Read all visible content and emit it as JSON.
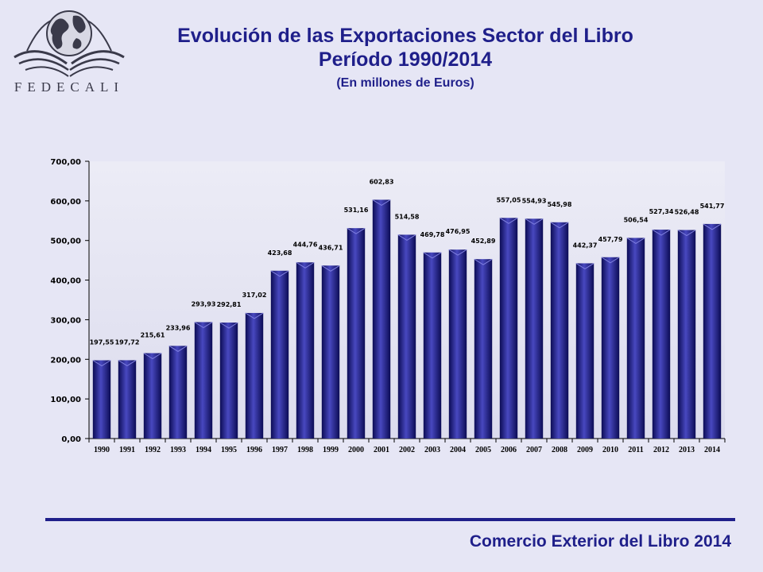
{
  "header": {
    "logo_text": "FEDECALI",
    "title_line1": "Evolución de las Exportaciones Sector del Libro",
    "title_line2": "Período 1990/2014",
    "subtitle": "(En millones de Euros)"
  },
  "colors": {
    "bar": "#1f1f8a",
    "bar_light": "#5a5ad0",
    "title": "#1f1f8a",
    "background": "#e6e6f5"
  },
  "icons": {
    "logo": "globe-book-logo-icon"
  },
  "footer": {
    "text": "Comercio Exterior del Libro 2014"
  },
  "chart_data": {
    "type": "bar",
    "categories": [
      "1990",
      "1991",
      "1992",
      "1993",
      "1994",
      "1995",
      "1996",
      "1997",
      "1998",
      "1999",
      "2000",
      "2001",
      "2002",
      "2003",
      "2004",
      "2005",
      "2006",
      "2007",
      "2008",
      "2009",
      "2010",
      "2011",
      "2012",
      "2013",
      "2014"
    ],
    "values": [
      197.55,
      197.72,
      215.61,
      233.96,
      293.93,
      292.81,
      317.02,
      423.68,
      444.76,
      436.71,
      531.16,
      602.83,
      514.58,
      469.78,
      476.95,
      452.89,
      557.05,
      554.93,
      545.98,
      442.37,
      457.79,
      506.54,
      527.34,
      526.48,
      541.77
    ],
    "value_labels": [
      "197,55",
      "197,72",
      "215,61",
      "233,96",
      "293,93",
      "292,81",
      "317,02",
      "423,68",
      "444,76",
      "436,71",
      "531,16",
      "602,83",
      "514,58",
      "469,78",
      "476,95",
      "452,89",
      "557,05",
      "554,93",
      "545,98",
      "442,37",
      "457,79",
      "506,54",
      "527,34",
      "526,48",
      "541,77"
    ],
    "y_ticks": [
      0,
      100,
      200,
      300,
      400,
      500,
      600,
      700
    ],
    "y_tick_labels": [
      "0,00",
      "100,00",
      "200,00",
      "300,00",
      "400,00",
      "500,00",
      "600,00",
      "700,00"
    ],
    "ylim": [
      0,
      700
    ],
    "grid": false,
    "legend": "none"
  }
}
